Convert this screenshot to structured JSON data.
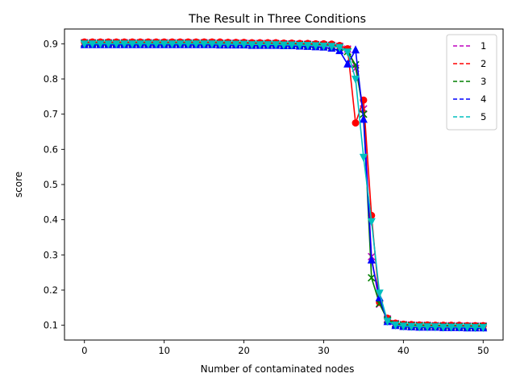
{
  "chart_data": {
    "type": "line",
    "title": "The Result in Three Conditions",
    "xlabel": "Number of contaminated nodes",
    "ylabel": "score",
    "xlim": [
      -2.5,
      52.5
    ],
    "ylim": [
      0.058,
      0.942
    ],
    "xticks": [
      0,
      10,
      20,
      30,
      40,
      50
    ],
    "xtick_labels": [
      "0",
      "10",
      "20",
      "30",
      "40",
      "50"
    ],
    "yticks": [
      0.1,
      0.2,
      0.3,
      0.4,
      0.5,
      0.6,
      0.7,
      0.8,
      0.9
    ],
    "ytick_labels": [
      "0.1",
      "0.2",
      "0.3",
      "0.4",
      "0.5",
      "0.6",
      "0.7",
      "0.8",
      "0.9"
    ],
    "grid": false,
    "legend_position": "top-right",
    "x": [
      0,
      1,
      2,
      3,
      4,
      5,
      6,
      7,
      8,
      9,
      10,
      11,
      12,
      13,
      14,
      15,
      16,
      17,
      18,
      19,
      20,
      21,
      22,
      23,
      24,
      25,
      26,
      27,
      28,
      29,
      30,
      31,
      32,
      33,
      34,
      35,
      36,
      37,
      38,
      39,
      40,
      41,
      42,
      43,
      44,
      45,
      46,
      47,
      48,
      49,
      50
    ],
    "series": [
      {
        "name": "1",
        "color": "#bf00bf",
        "marker": "x",
        "values": [
          0.903,
          0.903,
          0.903,
          0.903,
          0.903,
          0.903,
          0.903,
          0.903,
          0.903,
          0.903,
          0.903,
          0.903,
          0.903,
          0.903,
          0.903,
          0.903,
          0.903,
          0.902,
          0.902,
          0.902,
          0.902,
          0.901,
          0.901,
          0.901,
          0.901,
          0.9,
          0.9,
          0.899,
          0.899,
          0.898,
          0.897,
          0.896,
          0.893,
          0.885,
          0.83,
          0.715,
          0.295,
          0.16,
          0.118,
          0.105,
          0.102,
          0.101,
          0.1,
          0.1,
          0.099,
          0.099,
          0.099,
          0.098,
          0.098,
          0.098,
          0.098
        ]
      },
      {
        "name": "2",
        "color": "#ff0000",
        "marker": "o",
        "values": [
          0.905,
          0.905,
          0.905,
          0.905,
          0.905,
          0.905,
          0.905,
          0.905,
          0.905,
          0.905,
          0.905,
          0.905,
          0.905,
          0.905,
          0.905,
          0.905,
          0.905,
          0.905,
          0.904,
          0.904,
          0.904,
          0.903,
          0.903,
          0.903,
          0.903,
          0.902,
          0.902,
          0.901,
          0.901,
          0.9,
          0.9,
          0.899,
          0.895,
          0.886,
          0.675,
          0.74,
          0.412,
          0.165,
          0.12,
          0.106,
          0.103,
          0.102,
          0.101,
          0.101,
          0.1,
          0.1,
          0.1,
          0.1,
          0.099,
          0.099,
          0.099
        ]
      },
      {
        "name": "3",
        "color": "#007f00",
        "marker": "x",
        "values": [
          0.901,
          0.901,
          0.901,
          0.901,
          0.901,
          0.901,
          0.901,
          0.901,
          0.901,
          0.901,
          0.901,
          0.901,
          0.901,
          0.901,
          0.901,
          0.901,
          0.901,
          0.9,
          0.9,
          0.9,
          0.9,
          0.899,
          0.899,
          0.899,
          0.899,
          0.898,
          0.898,
          0.897,
          0.897,
          0.896,
          0.895,
          0.894,
          0.89,
          0.878,
          0.84,
          0.7,
          0.235,
          0.162,
          0.115,
          0.103,
          0.1,
          0.099,
          0.098,
          0.098,
          0.097,
          0.097,
          0.097,
          0.096,
          0.096,
          0.096,
          0.096
        ]
      },
      {
        "name": "4",
        "color": "#0000ff",
        "marker": "^",
        "values": [
          0.897,
          0.897,
          0.897,
          0.897,
          0.897,
          0.897,
          0.897,
          0.897,
          0.897,
          0.897,
          0.897,
          0.897,
          0.897,
          0.897,
          0.897,
          0.897,
          0.897,
          0.896,
          0.896,
          0.896,
          0.896,
          0.895,
          0.895,
          0.895,
          0.895,
          0.894,
          0.894,
          0.893,
          0.892,
          0.891,
          0.89,
          0.887,
          0.88,
          0.842,
          0.882,
          0.685,
          0.285,
          0.178,
          0.11,
          0.099,
          0.096,
          0.095,
          0.094,
          0.094,
          0.094,
          0.093,
          0.093,
          0.093,
          0.092,
          0.092,
          0.092
        ]
      },
      {
        "name": "5",
        "color": "#00bfbf",
        "marker": "v",
        "values": [
          0.9,
          0.9,
          0.9,
          0.9,
          0.9,
          0.9,
          0.9,
          0.9,
          0.9,
          0.9,
          0.9,
          0.9,
          0.9,
          0.9,
          0.9,
          0.9,
          0.9,
          0.899,
          0.899,
          0.899,
          0.899,
          0.898,
          0.898,
          0.898,
          0.898,
          0.897,
          0.897,
          0.896,
          0.896,
          0.895,
          0.894,
          0.893,
          0.89,
          0.877,
          0.8,
          0.578,
          0.395,
          0.192,
          0.112,
          0.101,
          0.098,
          0.097,
          0.096,
          0.096,
          0.096,
          0.095,
          0.095,
          0.095,
          0.095,
          0.094,
          0.094
        ]
      }
    ]
  }
}
